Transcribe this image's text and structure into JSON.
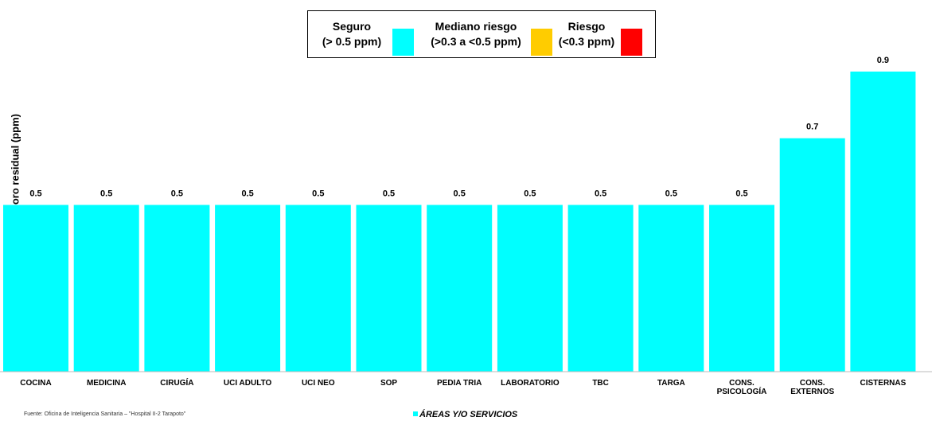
{
  "legend": {
    "items": [
      {
        "label_line1": "Seguro",
        "label_line2": "(> 0.5 ppm)",
        "color": "#00FFFF"
      },
      {
        "label_line1": "Mediano riesgo",
        "label_line2": "(>0.3 a <0.5 ppm)",
        "color": "#FFCC00"
      },
      {
        "label_line1": "Riesgo",
        "label_line2": "(<0.3 ppm)",
        "color": "#FF0000"
      }
    ]
  },
  "chart_data": {
    "type": "bar",
    "title": "",
    "ylabel": "Rango de Cloro residual (ppm)",
    "xlabel": "ÁREAS Y/O SERVICIOS",
    "ylim": [
      0,
      1.05
    ],
    "grid": false,
    "legend_position": "top-center",
    "bar_color": "#00FFFF",
    "categories": [
      [
        "COCINA"
      ],
      [
        "MEDICINA"
      ],
      [
        "CIRUGÍA"
      ],
      [
        "UCI ADULTO"
      ],
      [
        "UCI NEO"
      ],
      [
        "SOP"
      ],
      [
        "PEDIA TRIA"
      ],
      [
        "LABORATORIO"
      ],
      [
        "TBC"
      ],
      [
        "TARGA"
      ],
      [
        "CONS.",
        "PSICOLOGÍA"
      ],
      [
        "CONS.",
        "EXTERNOS"
      ],
      [
        "CISTERNAS"
      ]
    ],
    "series": [
      {
        "values": [
          0.5,
          0.5,
          0.5,
          0.5,
          0.5,
          0.5,
          0.5,
          0.5,
          0.5,
          0.5,
          0.5,
          0.7,
          0.9
        ],
        "labels": [
          "0.5",
          "0.5",
          "0.5",
          "0.5",
          "0.5",
          "0.5",
          "0.5",
          "0.5",
          "0.5",
          "0.5",
          "0.5",
          "0.7",
          "0.9"
        ]
      }
    ]
  },
  "footer": {
    "source": "Fuente: Oficina de Inteligencia Sanitaria – \"Hospital II-2 Tarapoto\""
  }
}
